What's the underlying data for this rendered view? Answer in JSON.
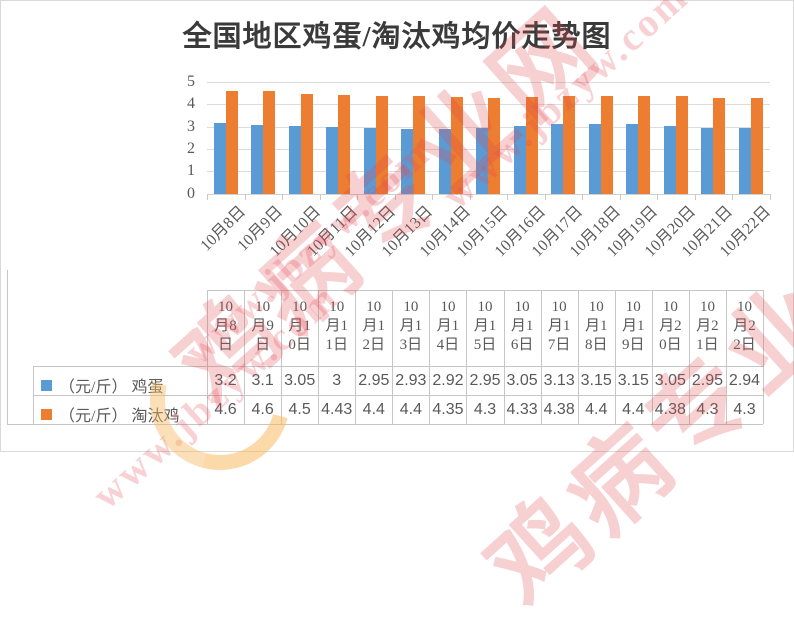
{
  "title": "全国地区鸡蛋/淘汰鸡均价走势图",
  "colors": {
    "egg_series": "#5B9BD5",
    "chicken_series": "#ED7D31",
    "gridline": "#DCDCDC",
    "axis_text": "#595959",
    "table_border": "#C6C6C6",
    "watermark_pink": "#E24852",
    "watermark_yellow": "#F7BA62"
  },
  "chart_data": {
    "type": "bar",
    "title": "全国地区鸡蛋/淘汰鸡均价走势图",
    "categories": [
      "10月8日",
      "10月9日",
      "10月10日",
      "10月11日",
      "10月12日",
      "10月13日",
      "10月14日",
      "10月15日",
      "10月16日",
      "10月17日",
      "10月18日",
      "10月19日",
      "10月20日",
      "10月21日",
      "10月22日"
    ],
    "series": [
      {
        "name": "（元/斤） 鸡蛋",
        "color": "#5B9BD5",
        "values": [
          3.2,
          3.1,
          3.05,
          3,
          2.95,
          2.93,
          2.92,
          2.95,
          3.05,
          3.13,
          3.15,
          3.15,
          3.05,
          2.95,
          2.94
        ]
      },
      {
        "name": "（元/斤） 淘汰鸡",
        "color": "#ED7D31",
        "values": [
          4.6,
          4.6,
          4.5,
          4.43,
          4.4,
          4.4,
          4.35,
          4.3,
          4.33,
          4.38,
          4.4,
          4.4,
          4.38,
          4.3,
          4.3
        ]
      }
    ],
    "xlabel": "",
    "ylabel": "",
    "ylim": [
      0,
      5
    ],
    "yticks": [
      0,
      1,
      2,
      3,
      4,
      5
    ],
    "grid": true,
    "legend_position": "data-table-left",
    "data_table_shown": true
  },
  "watermark": {
    "site_name": "鸡病专业网",
    "url": "www.jbzyw.com"
  }
}
